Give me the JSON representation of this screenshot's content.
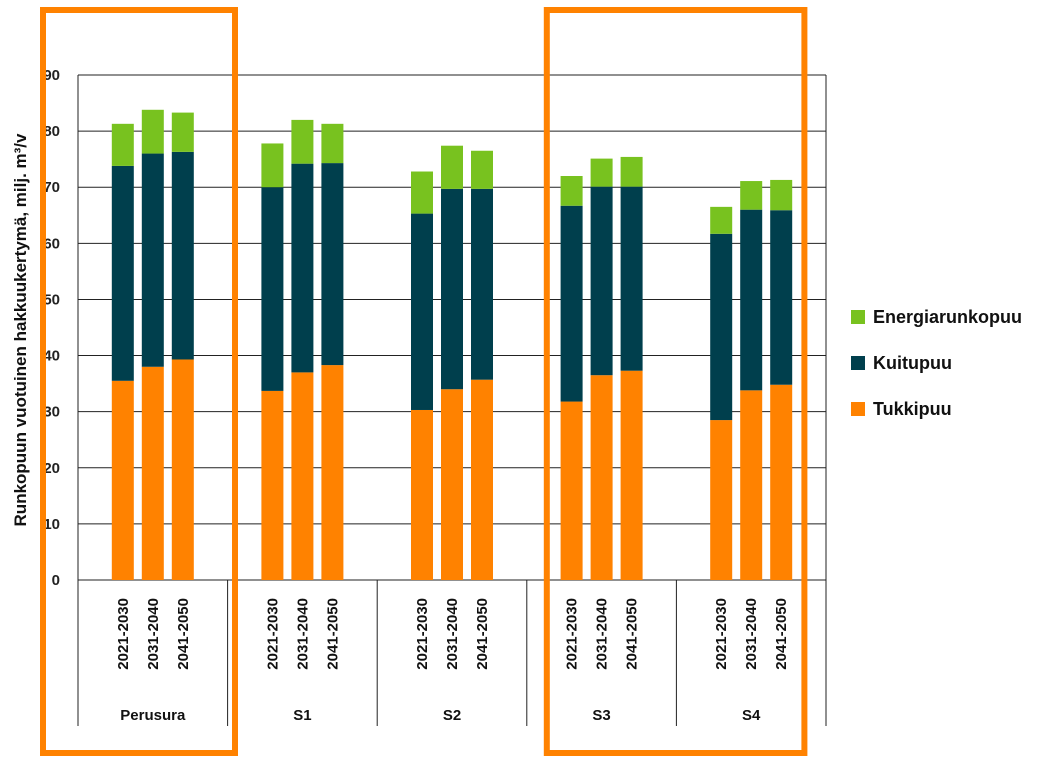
{
  "chart_data": {
    "type": "bar",
    "stacked": true,
    "ylabel": "Runkopuun vuotuinen hakkuukertymä, milj. m³/v",
    "ylim": [
      0,
      90
    ],
    "yticks": [
      "0",
      "10",
      "20",
      "30",
      "40",
      "50",
      "60",
      "70",
      "80",
      "90"
    ],
    "grid": true,
    "legend_position": "right",
    "groups": [
      "Perusura",
      "S1",
      "S2",
      "S3",
      "S4"
    ],
    "periods": [
      "2021-2030",
      "2031-2040",
      "2041-2050"
    ],
    "categories": [
      "Perusura 2021-2030",
      "Perusura 2031-2040",
      "Perusura 2041-2050",
      "S1 2021-2030",
      "S1 2031-2040",
      "S1 2041-2050",
      "S2 2021-2030",
      "S2 2031-2040",
      "S2 2041-2050",
      "S3 2021-2030",
      "S3 2031-2040",
      "S3 2041-2050",
      "S4 2021-2030",
      "S4 2031-2040",
      "S4 2041-2050"
    ],
    "series": [
      {
        "name": "Tukkipuu",
        "color": "#ff8200",
        "values": [
          35.5,
          38.0,
          39.3,
          33.7,
          37.0,
          38.3,
          30.3,
          34.0,
          35.7,
          31.8,
          36.5,
          37.3,
          28.5,
          33.8,
          34.8
        ]
      },
      {
        "name": "Kuitupuu",
        "color": "#003f4d",
        "values": [
          38.3,
          38.0,
          37.0,
          36.3,
          37.2,
          36.0,
          35.0,
          35.7,
          34.0,
          34.9,
          33.6,
          32.8,
          33.2,
          32.2,
          31.1
        ]
      },
      {
        "name": "Energiarunkopuu",
        "color": "#78c21f",
        "values": [
          7.5,
          7.8,
          7.0,
          7.8,
          7.8,
          7.0,
          7.5,
          7.7,
          6.8,
          5.3,
          5.0,
          5.3,
          4.8,
          5.1,
          5.4
        ]
      }
    ],
    "legend_order": [
      "Energiarunkopuu",
      "Kuitupuu",
      "Tukkipuu"
    ],
    "highlighted_groups": [
      "Perusura",
      "S3"
    ],
    "highlight_color": "#ff8200"
  }
}
